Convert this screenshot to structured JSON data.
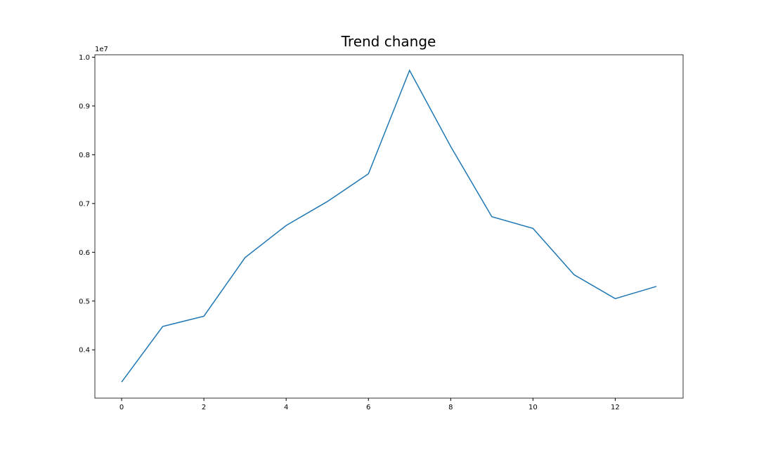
{
  "chart_data": {
    "type": "line",
    "title": "Trend change",
    "offset_label": "1e7",
    "x": [
      0,
      1,
      2,
      3,
      4,
      5,
      6,
      7,
      8,
      9,
      10,
      11,
      12,
      13
    ],
    "series": [
      {
        "color": "#1f77b4",
        "values": [
          0.334,
          0.448,
          0.469,
          0.589,
          0.655,
          0.704,
          0.761,
          0.973,
          0.817,
          0.673,
          0.649,
          0.554,
          0.505,
          0.53
        ]
      }
    ],
    "xlim": [
      -0.65,
      13.65
    ],
    "xticks": [
      0,
      2,
      4,
      6,
      8,
      10,
      12
    ],
    "ylim": [
      0.301,
      1.005
    ],
    "yticks": [
      0.4,
      0.5,
      0.6,
      0.7,
      0.8,
      0.9,
      {
        "value": 1.0,
        "label": "1.0"
      }
    ]
  }
}
